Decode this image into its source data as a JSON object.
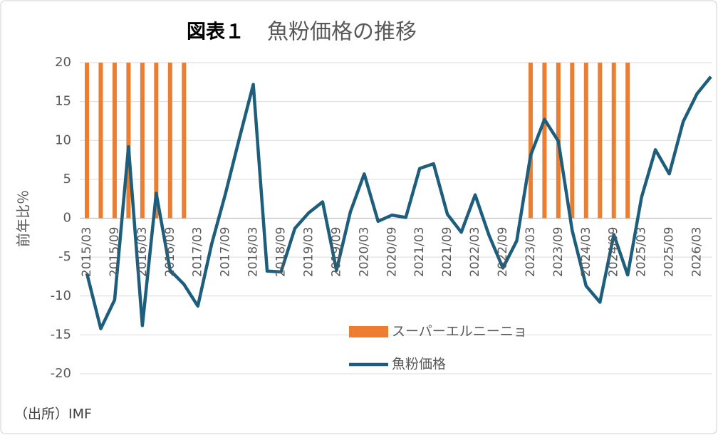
{
  "chart_data": {
    "type": "bar-line",
    "figure_label": "図表１",
    "title": "魚粉価格の推移",
    "y_label": "前年比％",
    "source": "（出所）IMF",
    "categories": [
      "2015/03",
      null,
      "2015/09",
      null,
      "2016/03",
      null,
      "2016/09",
      null,
      "2017/03",
      null,
      "2017/09",
      null,
      "2018/03",
      null,
      "2018/09",
      null,
      "2019/03",
      null,
      "2019/09",
      null,
      "2020/03",
      null,
      "2020/09",
      null,
      "2021/03",
      null,
      "2021/09",
      null,
      "2022/03",
      null,
      "2022/09",
      null,
      "2023/03",
      null,
      "2023/09",
      null,
      "2024/03",
      null,
      "2024/09",
      null,
      "2025/03",
      null,
      "2025/09",
      null,
      "2026/03",
      null
    ],
    "series": [
      {
        "name": "スーパーエルニーニョ",
        "type": "bar",
        "color": "#ed7d31",
        "values": [
          20,
          20,
          20,
          20,
          20,
          20,
          20,
          20,
          null,
          null,
          null,
          null,
          null,
          null,
          null,
          null,
          null,
          null,
          null,
          null,
          null,
          null,
          null,
          null,
          null,
          null,
          null,
          null,
          null,
          null,
          null,
          null,
          20,
          20,
          20,
          20,
          20,
          20,
          20,
          20,
          null,
          null,
          null,
          null,
          null,
          null
        ]
      },
      {
        "name": "魚粉価格",
        "type": "line",
        "color": "#1d5e7c",
        "values": [
          -7.1,
          -14.2,
          -10.5,
          9.2,
          -13.8,
          3.2,
          -6.7,
          -8.5,
          -11.3,
          -3.3,
          3.2,
          10.3,
          17.2,
          -6.8,
          -6.9,
          -1.3,
          0.7,
          2.1,
          -6.7,
          0.8,
          5.7,
          -0.4,
          0.4,
          0.1,
          6.4,
          7.0,
          0.5,
          -1.8,
          3.0,
          -2.2,
          -6.4,
          -2.9,
          8.1,
          12.7,
          9.9,
          -1.6,
          -8.7,
          -10.8,
          -2.1,
          -7.3,
          2.7,
          8.8,
          5.7,
          12.4,
          16.0,
          18.2
        ]
      }
    ],
    "ylim": [
      -20,
      20
    ],
    "yticks": [
      -20,
      -15,
      -10,
      -5,
      0,
      5,
      10,
      15,
      20
    ],
    "grid": true
  }
}
